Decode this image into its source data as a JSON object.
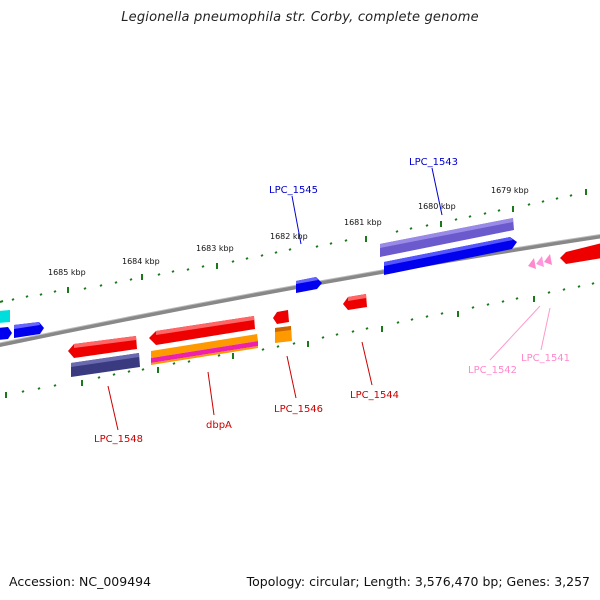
{
  "title": "Legionella pneumophila str. Corby, complete genome",
  "footer": {
    "accession": "Accession: NC_009494",
    "topology": "Topology: circular; Length: 3,576,470 bp; Genes: 3,257"
  },
  "colors": {
    "backbone": "#888888",
    "tick": "#1a7a1a",
    "forward_gene": "#0000ee",
    "reverse_gene": "#ee0000",
    "pseudo": "#ff88cc",
    "cds_band": "#4a4aa0",
    "highlight_cyan": "#00dddd",
    "orange": "#ff9900"
  },
  "scale_labels": [
    "1685 kbp",
    "1684 kbp",
    "1683 kbp",
    "1682 kbp",
    "1681 kbp",
    "1680 kbp",
    "1679 kbp"
  ],
  "gene_labels": [
    {
      "name": "LPC_1545",
      "color": "#0000cc"
    },
    {
      "name": "LPC_1543",
      "color": "#0000cc"
    },
    {
      "name": "LPC_1548",
      "color": "#cc0000"
    },
    {
      "name": "dbpA",
      "color": "#cc0000"
    },
    {
      "name": "LPC_1546",
      "color": "#cc0000"
    },
    {
      "name": "LPC_1544",
      "color": "#cc0000"
    },
    {
      "name": "LPC_1542",
      "color": "#ff88cc"
    },
    {
      "name": "LPC_1541",
      "color": "#ff88cc"
    }
  ]
}
